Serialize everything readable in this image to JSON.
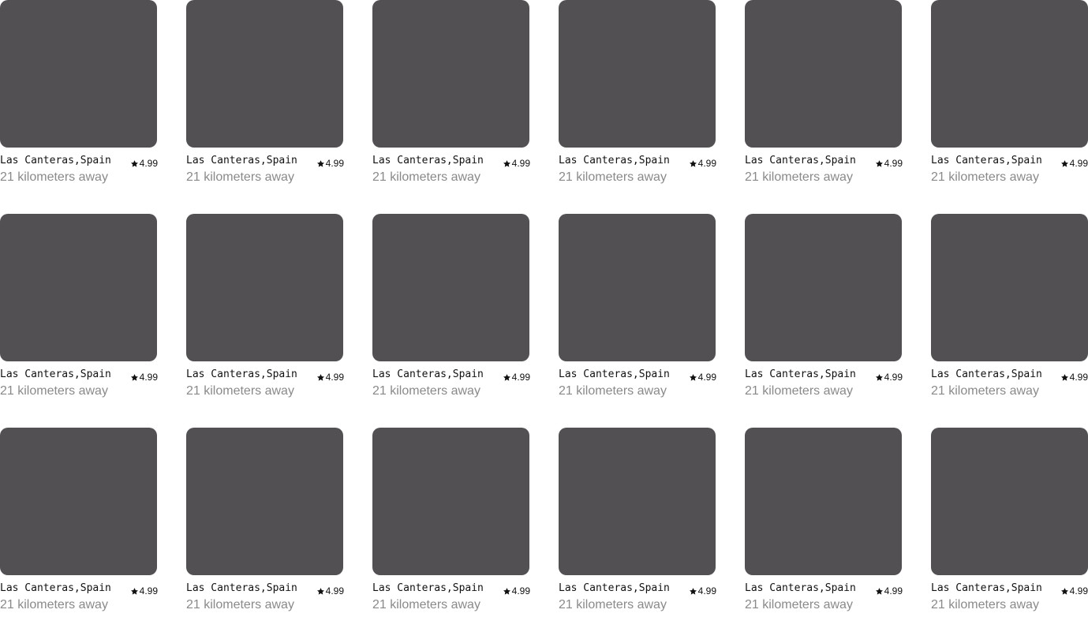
{
  "colors": {
    "card_placeholder": "#525053",
    "title_text": "#111111",
    "subtitle_text": "#8a8a8a"
  },
  "listings": [
    {
      "title": "Las Canteras,Spain",
      "distance": "21 kilometers away",
      "rating": "4.99",
      "rating_icon": "star-icon"
    },
    {
      "title": "Las Canteras,Spain",
      "distance": "21 kilometers away",
      "rating": "4.99",
      "rating_icon": "star-icon"
    },
    {
      "title": "Las Canteras,Spain",
      "distance": "21 kilometers away",
      "rating": "4.99",
      "rating_icon": "star-icon"
    },
    {
      "title": "Las Canteras,Spain",
      "distance": "21 kilometers away",
      "rating": "4.99",
      "rating_icon": "star-icon"
    },
    {
      "title": "Las Canteras,Spain",
      "distance": "21 kilometers away",
      "rating": "4.99",
      "rating_icon": "star-icon"
    },
    {
      "title": "Las Canteras,Spain",
      "distance": "21 kilometers away",
      "rating": "4.99",
      "rating_icon": "star-icon"
    },
    {
      "title": "Las Canteras,Spain",
      "distance": "21 kilometers away",
      "rating": "4.99",
      "rating_icon": "star-icon"
    },
    {
      "title": "Las Canteras,Spain",
      "distance": "21 kilometers away",
      "rating": "4.99",
      "rating_icon": "star-icon"
    },
    {
      "title": "Las Canteras,Spain",
      "distance": "21 kilometers away",
      "rating": "4.99",
      "rating_icon": "star-icon"
    },
    {
      "title": "Las Canteras,Spain",
      "distance": "21 kilometers away",
      "rating": "4.99",
      "rating_icon": "star-icon"
    },
    {
      "title": "Las Canteras,Spain",
      "distance": "21 kilometers away",
      "rating": "4.99",
      "rating_icon": "star-icon"
    },
    {
      "title": "Las Canteras,Spain",
      "distance": "21 kilometers away",
      "rating": "4.99",
      "rating_icon": "star-icon"
    },
    {
      "title": "Las Canteras,Spain",
      "distance": "21 kilometers away",
      "rating": "4.99",
      "rating_icon": "star-icon"
    },
    {
      "title": "Las Canteras,Spain",
      "distance": "21 kilometers away",
      "rating": "4.99",
      "rating_icon": "star-icon"
    },
    {
      "title": "Las Canteras,Spain",
      "distance": "21 kilometers away",
      "rating": "4.99",
      "rating_icon": "star-icon"
    },
    {
      "title": "Las Canteras,Spain",
      "distance": "21 kilometers away",
      "rating": "4.99",
      "rating_icon": "star-icon"
    },
    {
      "title": "Las Canteras,Spain",
      "distance": "21 kilometers away",
      "rating": "4.99",
      "rating_icon": "star-icon"
    },
    {
      "title": "Las Canteras,Spain",
      "distance": "21 kilometers away",
      "rating": "4.99",
      "rating_icon": "star-icon"
    }
  ]
}
